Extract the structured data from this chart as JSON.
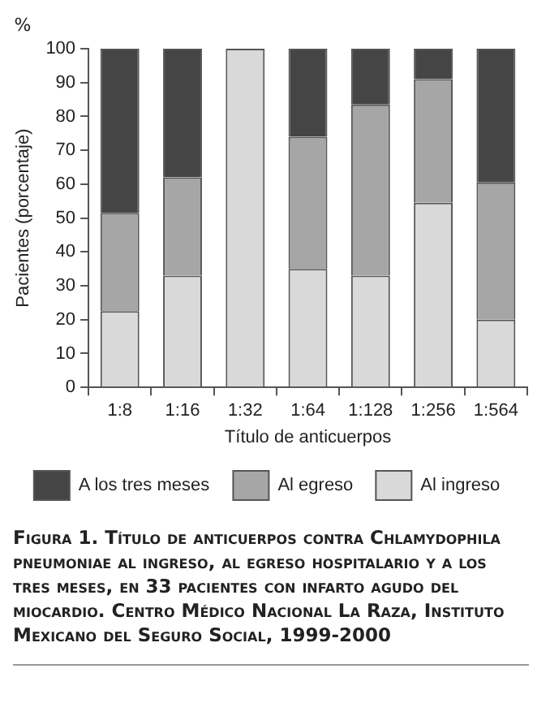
{
  "chart_data": {
    "type": "bar",
    "stacked": true,
    "xlabel": "Título de anticuerpos",
    "ylabel": "Pacientes (porcentaje)",
    "title": "Figura 1. Título de anticuerpos contra Chlamydophila pneumoniae al ingreso, al egreso hospitalario y a los tres meses, en 33 pacientes con infarto agudo del miocardio. Centro Médico Nacional La Raza, Instituto Mexicano del Seguro Social, 1999-2000",
    "annotations": [
      "%"
    ],
    "categories": [
      "1:8",
      "1:16",
      "1:32",
      "1:64",
      "1:128",
      "1:256",
      "1:564"
    ],
    "series": [
      {
        "name": "Al ingreso",
        "color": "#d9d9d9",
        "values": [
          22.5,
          33,
          100,
          35,
          33,
          54.5,
          20
        ]
      },
      {
        "name": "Al egreso",
        "color": "#a6a6a6",
        "values": [
          29,
          29,
          0,
          39,
          50.5,
          36.5,
          40.5
        ]
      },
      {
        "name": "A los tres meses",
        "color": "#454545",
        "values": [
          48.5,
          38,
          0,
          26,
          16.5,
          9,
          39.5
        ]
      }
    ],
    "ylim": [
      0,
      100
    ],
    "yticks": [
      0,
      10,
      20,
      30,
      40,
      50,
      60,
      70,
      80,
      90,
      100
    ],
    "grid": false,
    "legend": "bottom"
  }
}
